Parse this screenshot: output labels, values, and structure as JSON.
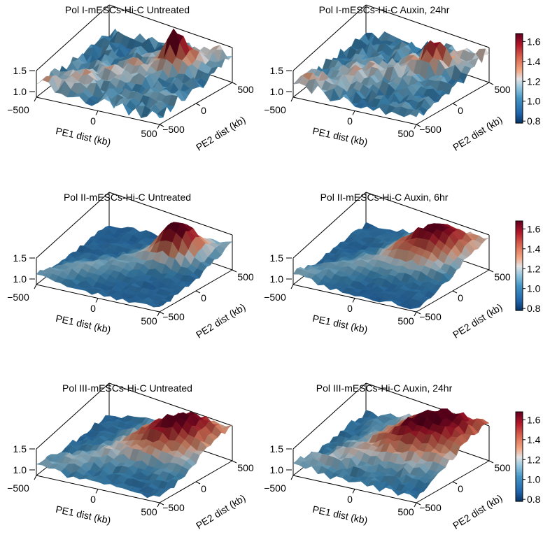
{
  "chart_data": [
    {
      "type": "surface",
      "title": "Pol I-mESCs-Hi-C Untreated",
      "xlabel": "PE1 dist (kb)",
      "ylabel": "PE2 dist (kb)",
      "xticks": [
        "−500",
        "0",
        "500"
      ],
      "yticks": [
        "−500",
        "0",
        "500"
      ],
      "zticks": [
        "1.0",
        "1.5"
      ],
      "xlim": [
        -500,
        500
      ],
      "ylim": [
        -500,
        500
      ],
      "zlim": [
        0.85,
        1.9
      ],
      "peak": 1.72,
      "center_spread": 0.06,
      "background": 1.05,
      "noise": 0.28,
      "colorbar": false,
      "colormap": "RdBu_r",
      "seed": 11
    },
    {
      "type": "surface",
      "title": "Pol I-mESCs-Hi-C Auxin, 24hr",
      "xlabel": "PE1 dist (kb)",
      "ylabel": "PE2 dist (kb)",
      "xticks": [
        "−500",
        "0",
        "500"
      ],
      "yticks": [
        "−500",
        "0",
        "500"
      ],
      "zticks": [
        "1.0",
        "1.5"
      ],
      "xlim": [
        -500,
        500
      ],
      "ylim": [
        -500,
        500
      ],
      "zlim": [
        0.85,
        1.9
      ],
      "peak": 1.55,
      "center_spread": 0.06,
      "background": 1.05,
      "noise": 0.26,
      "colorbar": true,
      "colormap": "RdBu_r",
      "seed": 23
    },
    {
      "type": "surface",
      "title": "Pol II-mESCs-Hi-C Untreated",
      "xlabel": "PE1 dist (kb)",
      "ylabel": "PE2 dist (kb)",
      "xticks": [
        "−500",
        "0",
        "500"
      ],
      "yticks": [
        "−500",
        "0",
        "500"
      ],
      "zticks": [
        "1.0",
        "1.5"
      ],
      "xlim": [
        -500,
        500
      ],
      "ylim": [
        -500,
        500
      ],
      "zlim": [
        0.85,
        1.9
      ],
      "peak": 1.62,
      "center_spread": 0.12,
      "background": 0.95,
      "noise": 0.1,
      "colorbar": false,
      "colormap": "RdBu_r",
      "seed": 37
    },
    {
      "type": "surface",
      "title": "Pol II-mESCs-Hi-C Auxin, 6hr",
      "xlabel": "PE1 dist (kb)",
      "ylabel": "PE2 dist (kb)",
      "xticks": [
        "−500",
        "0",
        "500"
      ],
      "yticks": [
        "−500",
        "0",
        "500"
      ],
      "zticks": [
        "1.0",
        "1.5"
      ],
      "xlim": [
        -500,
        500
      ],
      "ylim": [
        -500,
        500
      ],
      "zlim": [
        0.85,
        1.9
      ],
      "peak": 1.52,
      "center_spread": 0.2,
      "background": 0.95,
      "noise": 0.1,
      "colorbar": true,
      "colormap": "RdBu_r",
      "seed": 41
    },
    {
      "type": "surface",
      "title": "Pol III-mESCs-Hi-C Untreated",
      "xlabel": "PE1 dist (kb)",
      "ylabel": "PE2 dist (kb)",
      "xticks": [
        "−500",
        "0",
        "500"
      ],
      "yticks": [
        "−500",
        "0",
        "500"
      ],
      "zticks": [
        "1.0",
        "1.5"
      ],
      "xlim": [
        -500,
        500
      ],
      "ylim": [
        -500,
        500
      ],
      "zlim": [
        0.85,
        1.9
      ],
      "peak": 1.55,
      "center_spread": 0.22,
      "background": 0.98,
      "noise": 0.14,
      "colorbar": false,
      "colormap": "RdBu_r",
      "seed": 53
    },
    {
      "type": "surface",
      "title": "Pol III-mESCs-Hi-C Auxin, 24hr",
      "xlabel": "PE1 dist (kb)",
      "ylabel": "PE2 dist (kb)",
      "xticks": [
        "−500",
        "0",
        "500"
      ],
      "yticks": [
        "−500",
        "0",
        "500"
      ],
      "zticks": [
        "1.0",
        "1.5"
      ],
      "xlim": [
        -500,
        500
      ],
      "ylim": [
        -500,
        500
      ],
      "zlim": [
        0.85,
        1.9
      ],
      "peak": 1.6,
      "center_spread": 0.26,
      "background": 1.0,
      "noise": 0.15,
      "colorbar": true,
      "colormap": "RdBu_r",
      "seed": 67
    }
  ],
  "colorbar_ticks": [
    "1.6",
    "1.4",
    "1.2",
    "1.0",
    "0.8"
  ],
  "colorbar_range": [
    0.78,
    1.68
  ]
}
